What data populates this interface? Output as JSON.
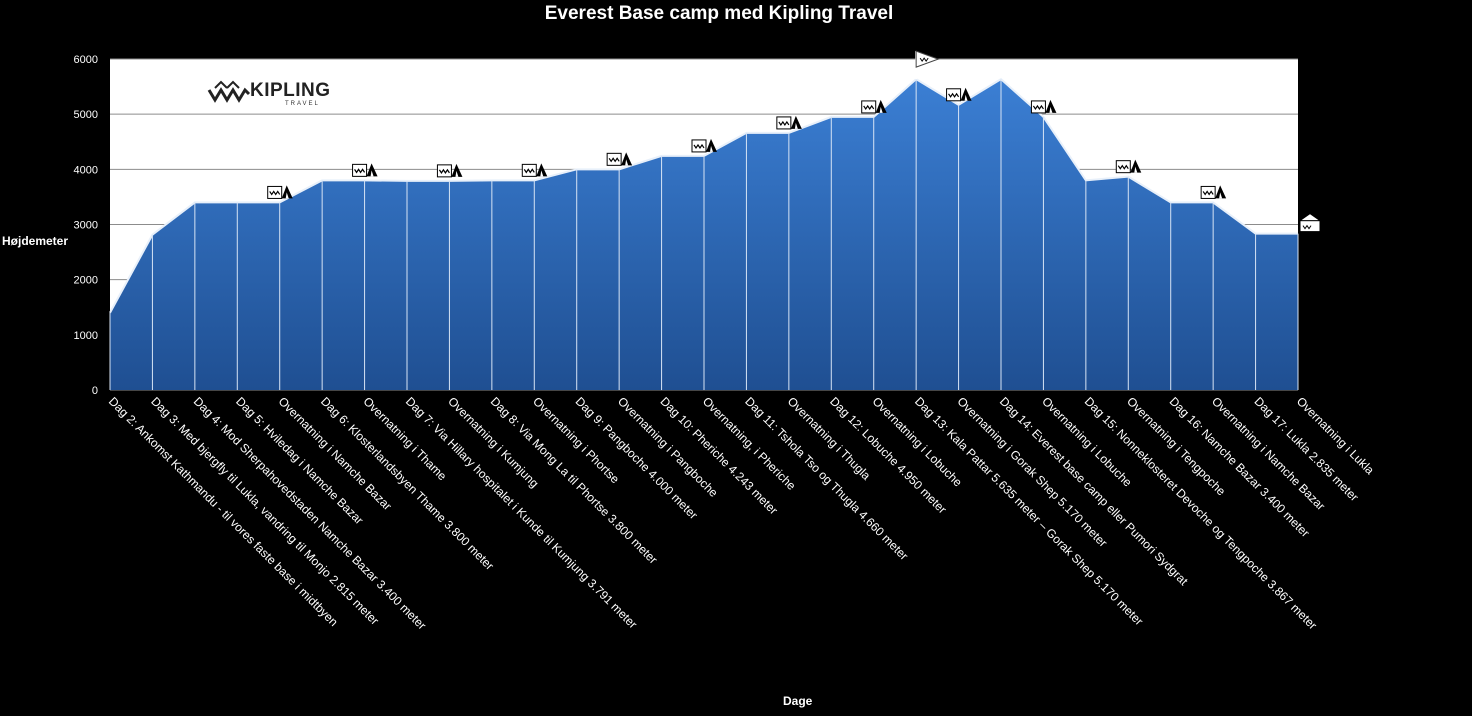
{
  "brand": {
    "word": "KIPLING",
    "sub": "TRAVEL"
  },
  "chart_data": {
    "type": "area",
    "title": "Everest Base camp med Kipling Travel",
    "xlabel": "Dage",
    "ylabel": "Højdemeter",
    "ylim": [
      0,
      6000
    ],
    "yticks": [
      0,
      1000,
      2000,
      3000,
      4000,
      5000,
      6000
    ],
    "grid": true,
    "colors": {
      "area": "#3b7fd4",
      "area_dark": "#1f4f92",
      "plot_bg": "#ffffff",
      "page_bg": "#000000"
    },
    "categories": [
      "Dag 2: Ankomst Kathmandu - til vores faste base i midtbyen",
      "Dag 3: Med bjergfly til Lukla, vandring til Monjo 2.815 meter",
      "Dag 4: Mod Sherpahovedstaden Namche Bazar 3.400 meter",
      "Dag 5: Hviledag i Namche Bazar",
      "Overnatning i Namche Bazar",
      "Dag 6: Klosterlandsbyen Thame 3.800 meter",
      "Overnatning i Thame",
      "Dag 7: Via Hillary hospitalet i Kunde til Kumjung 3.791 meter",
      "Overnatning i Kumjung",
      "Dag 8: Via Mong La til Phortse 3.800 meter",
      "Overnatning i Phortse",
      "Dag 9: Pangboche 4.000 meter",
      "Overnatning i Pangboche",
      "Dag 10: Pheriche 4.243 meter",
      "Overnatning, i Pheriche",
      "Dag 11: Tshola Tso og Thugla 4.660 meter",
      "Overnatning i Thugla",
      "Dag 12: Lobuche 4.950 meter",
      "Overnatning i Lobuche",
      "Dag 13: Kala Pattar 5.635 meter – Gorak Shep 5.170 meter",
      "Overnatning i Gorak Shep 5.170 meter",
      "Dag 14: Everest base camp eller Pumori Sydgrat",
      "Overnatning i Lobuche",
      "Dag 15: Nonneklosteret Devoche og Tengpoche 3.867 meter",
      "Overnatning i Tengpoche",
      "Dag 16: Namche Bazar 3.400 meter",
      "Overnatning i Namche Bazar",
      "Dag 17: Lukla 2.835 meter",
      "Overnatning i Lukla"
    ],
    "values": [
      1400,
      2815,
      3400,
      3400,
      3400,
      3800,
      3800,
      3791,
      3791,
      3800,
      3800,
      4000,
      4000,
      4243,
      4243,
      4660,
      4660,
      4950,
      4950,
      5635,
      5170,
      5635,
      4950,
      3800,
      3867,
      3400,
      3400,
      2835,
      2835
    ],
    "annotations": [
      {
        "at": 4,
        "icon": "tent-icon"
      },
      {
        "at": 6,
        "icon": "tent-icon"
      },
      {
        "at": 8,
        "icon": "tent-icon"
      },
      {
        "at": 10,
        "icon": "tent-icon"
      },
      {
        "at": 12,
        "icon": "tent-icon"
      },
      {
        "at": 14,
        "icon": "tent-icon"
      },
      {
        "at": 16,
        "icon": "tent-icon"
      },
      {
        "at": 18,
        "icon": "tent-icon"
      },
      {
        "at": 19,
        "icon": "summit-flag-icon"
      },
      {
        "at": 20,
        "icon": "tent-icon"
      },
      {
        "at": 22,
        "icon": "tent-icon"
      },
      {
        "at": 24,
        "icon": "tent-icon"
      },
      {
        "at": 26,
        "icon": "tent-icon"
      },
      {
        "at": 28,
        "icon": "lodge-icon"
      }
    ]
  }
}
